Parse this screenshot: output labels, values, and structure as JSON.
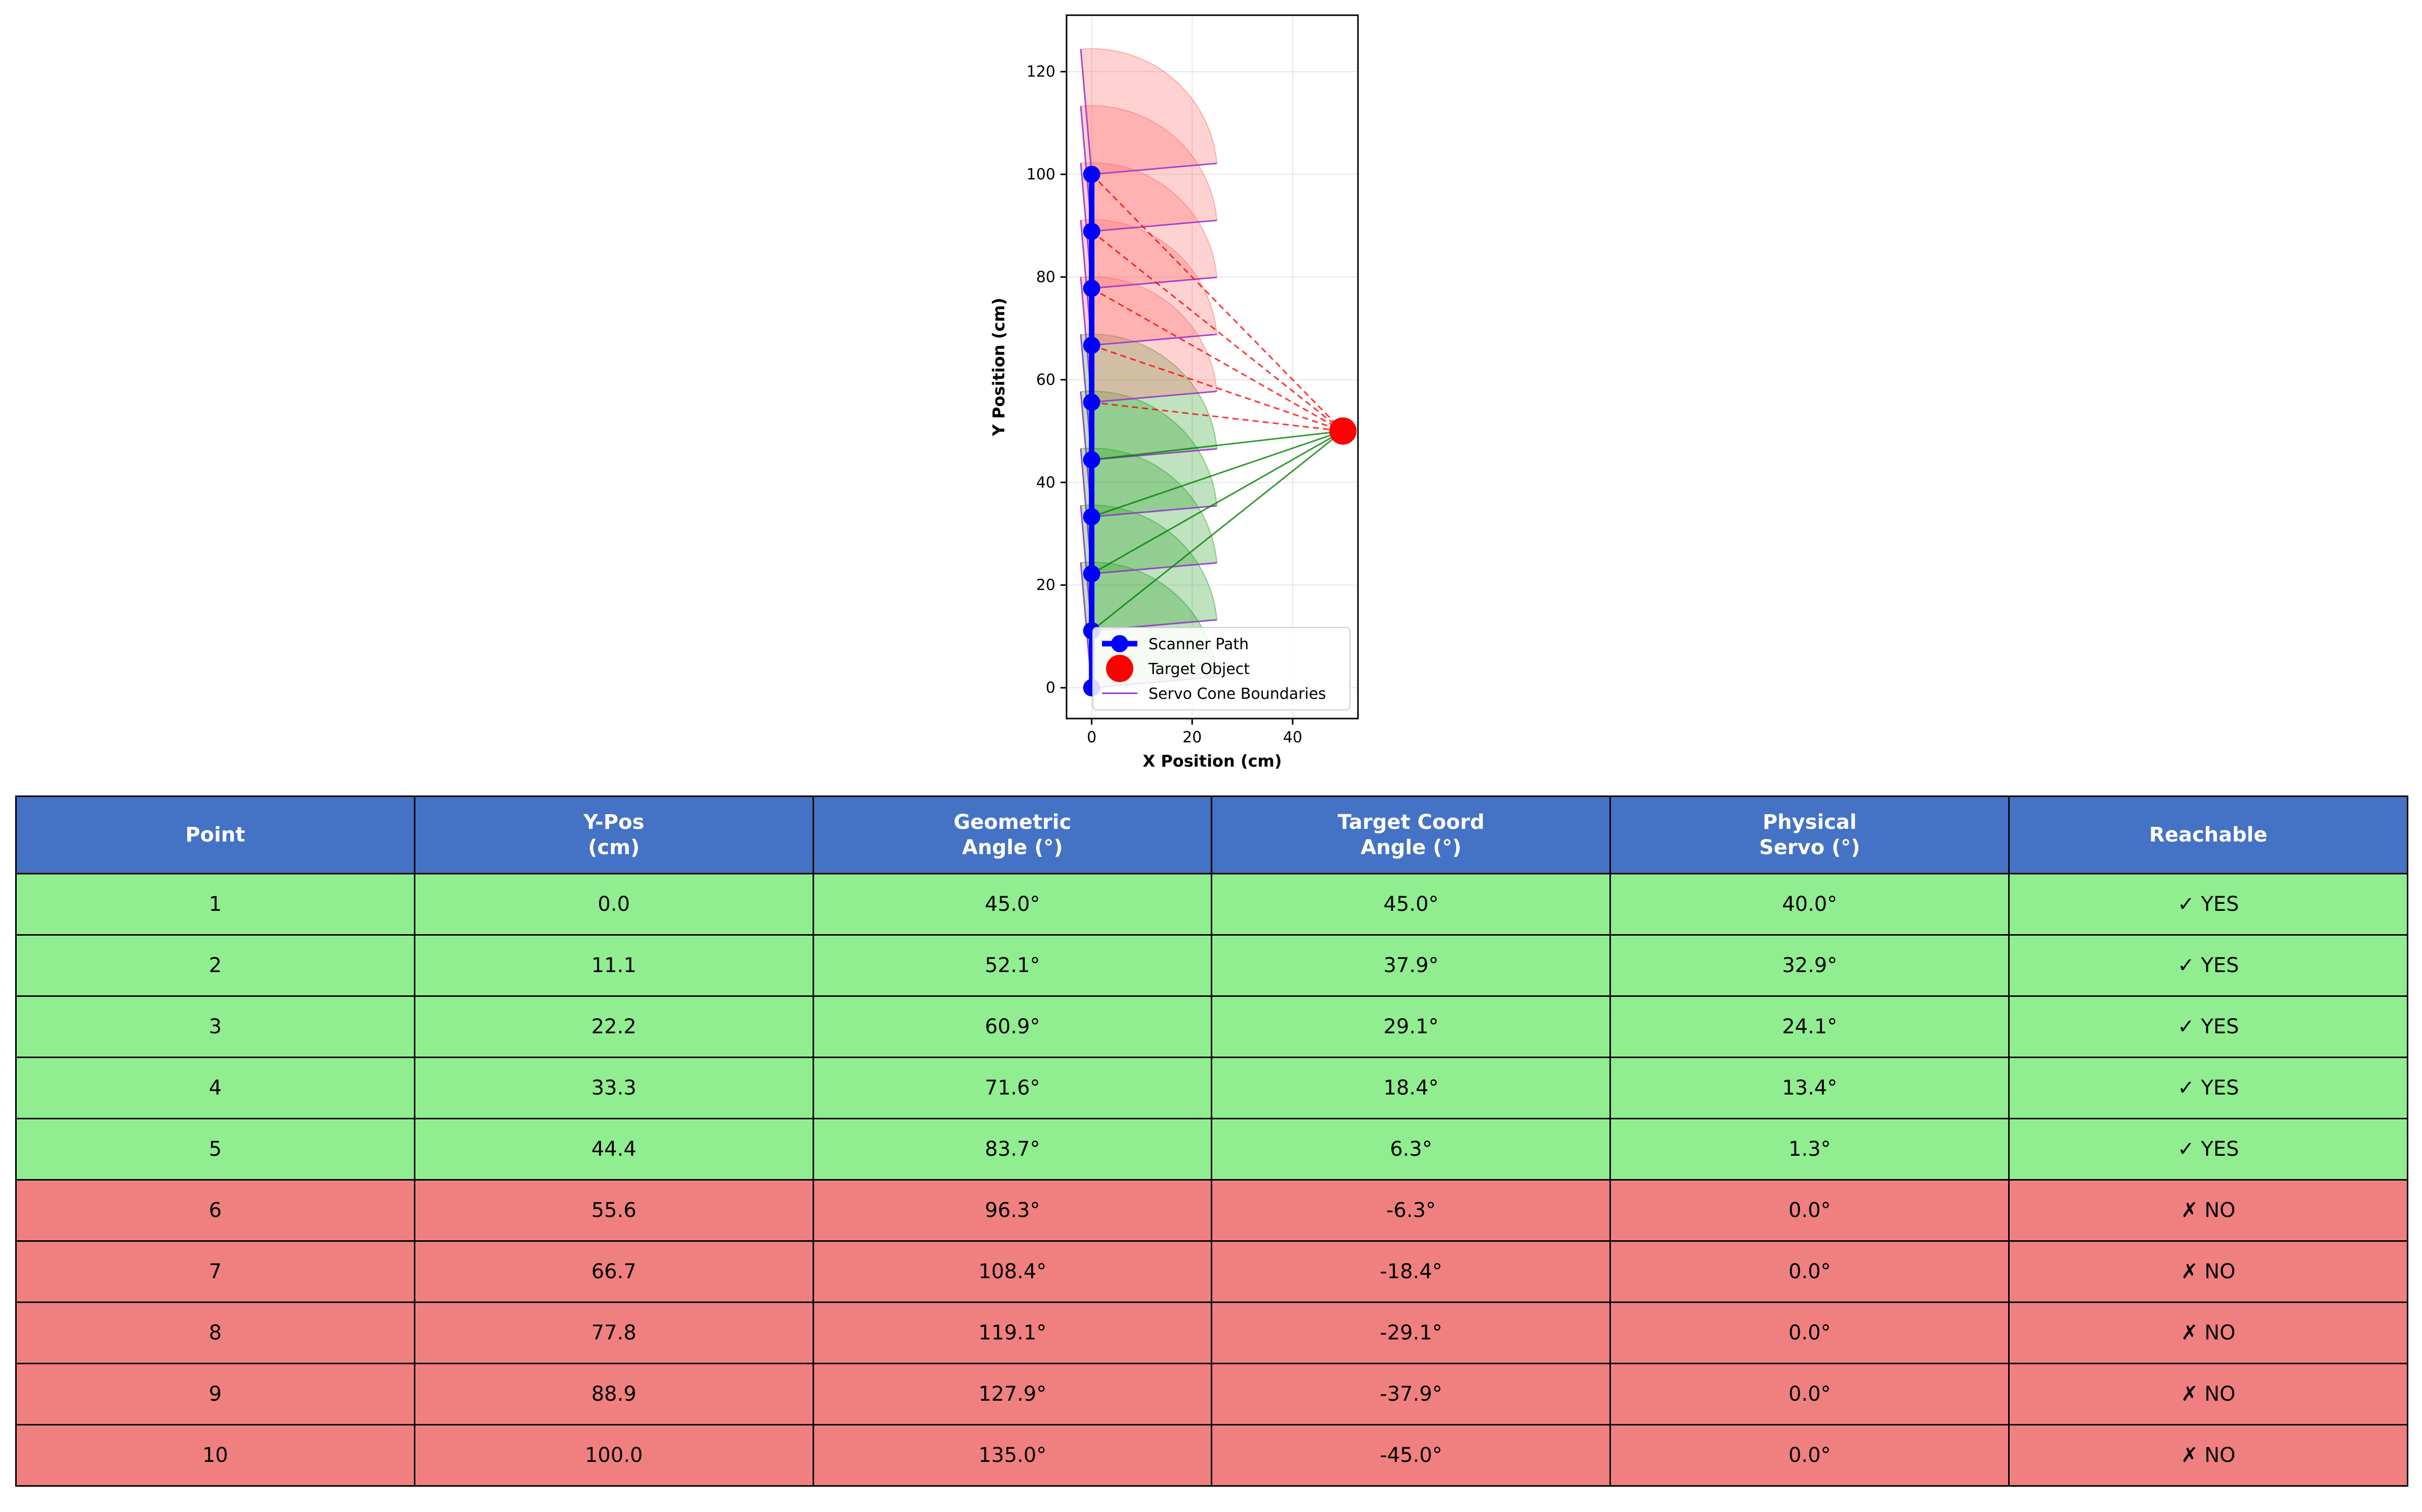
{
  "chart_data": {
    "type": "scatter",
    "xlabel": "X Position (cm)",
    "ylabel": "Y Position (cm)",
    "xlim": [
      -5,
      53
    ],
    "ylim": [
      -6,
      131
    ],
    "xticks": [
      0,
      20,
      40
    ],
    "yticks": [
      0,
      20,
      40,
      60,
      80,
      100,
      120
    ],
    "grid": true,
    "legend_placement": "lower-right",
    "legend": [
      "Scanner Path",
      "Target Object",
      "Servo Cone Boundaries"
    ],
    "scanner_path": {
      "name": "Scanner Path",
      "x": [
        0,
        0,
        0,
        0,
        0,
        0,
        0,
        0,
        0,
        0
      ],
      "y": [
        0.0,
        11.1,
        22.2,
        33.3,
        44.4,
        55.6,
        66.7,
        77.8,
        88.9,
        100.0
      ],
      "color": "#0000ff"
    },
    "target": {
      "name": "Target Object",
      "x": 50,
      "y": 50,
      "color": "#ff0000"
    },
    "cones": {
      "name": "Servo Cone Boundaries",
      "radius": 25,
      "min_angle_deg": 5,
      "max_angle_deg": 95,
      "reachable_color": "#2ca02c",
      "unreachable_color": "#ff6b6b",
      "boundary_color": "#9932cc"
    },
    "sight_lines": {
      "reachable_color": "#008000",
      "unreachable_color": "#ff0000"
    },
    "reachable": [
      true,
      true,
      true,
      true,
      true,
      false,
      false,
      false,
      false,
      false
    ]
  },
  "table": {
    "headers": [
      "Point",
      "Y-Pos\n(cm)",
      "Geometric\nAngle (°)",
      "Target Coord\nAngle (°)",
      "Physical\nServo (°)",
      "Reachable"
    ],
    "rows": [
      [
        "1",
        "0.0",
        "45.0°",
        "45.0°",
        "40.0°",
        "✓ YES"
      ],
      [
        "2",
        "11.1",
        "52.1°",
        "37.9°",
        "32.9°",
        "✓ YES"
      ],
      [
        "3",
        "22.2",
        "60.9°",
        "29.1°",
        "24.1°",
        "✓ YES"
      ],
      [
        "4",
        "33.3",
        "71.6°",
        "18.4°",
        "13.4°",
        "✓ YES"
      ],
      [
        "5",
        "44.4",
        "83.7°",
        "6.3°",
        "1.3°",
        "✓ YES"
      ],
      [
        "6",
        "55.6",
        "96.3°",
        "-6.3°",
        "0.0°",
        "✗ NO"
      ],
      [
        "7",
        "66.7",
        "108.4°",
        "-18.4°",
        "0.0°",
        "✗ NO"
      ],
      [
        "8",
        "77.8",
        "119.1°",
        "-29.1°",
        "0.0°",
        "✗ NO"
      ],
      [
        "9",
        "88.9",
        "127.9°",
        "-37.9°",
        "0.0°",
        "✗ NO"
      ],
      [
        "10",
        "100.0",
        "135.0°",
        "-45.0°",
        "0.0°",
        "✗ NO"
      ]
    ],
    "colors": {
      "header": "#4472c4",
      "reachable_row": "#90ee90",
      "unreachable_row": "#f08080"
    }
  }
}
